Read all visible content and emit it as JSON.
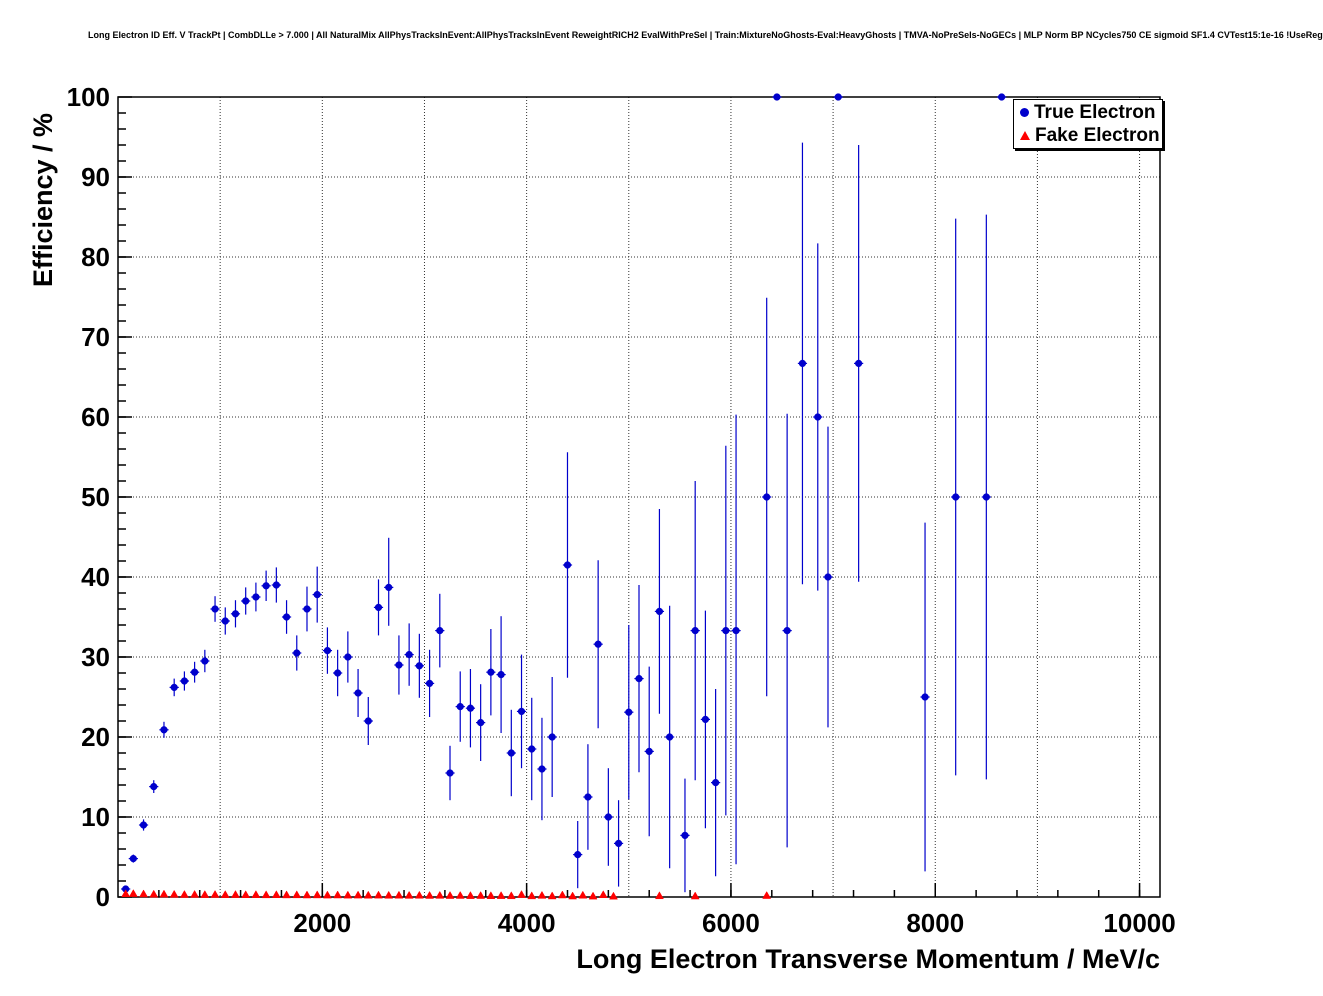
{
  "header": {
    "title": "Long Electron ID Eff. V TrackPt | CombDLLe > 7.000 | All NaturalMix AllPhysTracksInEvent:AllPhysTracksInEvent ReweightRICH2 EvalWithPreSel | Train:MixtureNoGhosts-Eval:HeavyGhosts | TMVA-NoPreSels-NoGECs | MLP Norm BP NCycles750 CE sigmoid SF1.4 CVTest15:1e-16 !UseReg"
  },
  "chart_data": {
    "type": "scatter",
    "title": "Long Electron ID Eff. V TrackPt | CombDLLe > 7.000",
    "xlabel": "Long Electron Transverse Momentum / MeV/c",
    "ylabel": "Efficiency / %",
    "xlim": [
      0,
      10200
    ],
    "ylim": [
      0,
      100
    ],
    "x_ticks": [
      2000,
      4000,
      6000,
      8000,
      10000
    ],
    "y_ticks": [
      0,
      10,
      20,
      30,
      40,
      50,
      60,
      70,
      80,
      90,
      100
    ],
    "grid": true,
    "grid_style": "dotted",
    "grid_color": "#000000",
    "frame_color": "#000000",
    "legend": {
      "position": "top-right",
      "entries": [
        {
          "label": "True Electron",
          "marker": "circle",
          "color": "#0000cc"
        },
        {
          "label": "Fake Electron",
          "marker": "triangle",
          "color": "#ff0000"
        }
      ]
    },
    "series": [
      {
        "name": "True Electron",
        "marker": "circle",
        "color": "#0000cc",
        "xerr": 45,
        "points": [
          [
            75,
            1.0,
            0.6,
            1.4
          ],
          [
            150,
            4.8,
            4.3,
            5.3
          ],
          [
            250,
            9.0,
            8.3,
            9.7
          ],
          [
            350,
            13.8,
            13.0,
            14.6
          ],
          [
            450,
            20.9,
            19.9,
            21.9
          ],
          [
            550,
            26.2,
            25.1,
            27.3
          ],
          [
            650,
            27.0,
            25.8,
            28.2
          ],
          [
            750,
            28.1,
            26.8,
            29.4
          ],
          [
            850,
            29.5,
            28.1,
            30.9
          ],
          [
            950,
            36.0,
            34.4,
            37.6
          ],
          [
            1050,
            34.5,
            32.8,
            36.2
          ],
          [
            1150,
            35.4,
            33.7,
            37.1
          ],
          [
            1250,
            37.0,
            35.3,
            38.7
          ],
          [
            1350,
            37.5,
            35.7,
            39.3
          ],
          [
            1450,
            38.9,
            37.0,
            40.8
          ],
          [
            1550,
            39.0,
            36.8,
            41.2
          ],
          [
            1650,
            35.0,
            32.9,
            37.1
          ],
          [
            1750,
            30.5,
            28.3,
            32.7
          ],
          [
            1850,
            36.0,
            33.2,
            38.8
          ],
          [
            1950,
            37.8,
            34.3,
            41.3
          ],
          [
            2050,
            30.8,
            27.9,
            33.7
          ],
          [
            2150,
            28.0,
            25.1,
            30.9
          ],
          [
            2250,
            30.0,
            26.8,
            33.2
          ],
          [
            2350,
            25.5,
            22.5,
            28.5
          ],
          [
            2450,
            22.0,
            19.0,
            25.0
          ],
          [
            2550,
            36.2,
            32.7,
            39.7
          ],
          [
            2650,
            38.7,
            33.9,
            44.9
          ],
          [
            2750,
            29.0,
            25.3,
            32.7
          ],
          [
            2850,
            30.3,
            26.4,
            34.2
          ],
          [
            2950,
            28.9,
            24.9,
            32.9
          ],
          [
            3050,
            26.7,
            22.5,
            30.9
          ],
          [
            3150,
            33.3,
            28.7,
            37.9
          ],
          [
            3250,
            15.5,
            12.1,
            18.9
          ],
          [
            3350,
            23.8,
            19.4,
            28.2
          ],
          [
            3450,
            23.6,
            18.7,
            28.5
          ],
          [
            3550,
            21.8,
            17.0,
            26.6
          ],
          [
            3650,
            28.1,
            22.7,
            33.5
          ],
          [
            3750,
            27.8,
            20.5,
            35.1
          ],
          [
            3850,
            18.0,
            12.6,
            23.4
          ],
          [
            3950,
            23.2,
            16.1,
            30.3
          ],
          [
            4050,
            18.5,
            12.1,
            24.9
          ],
          [
            4150,
            16.0,
            9.6,
            22.4
          ],
          [
            4250,
            20.0,
            12.5,
            27.5
          ],
          [
            4400,
            41.5,
            27.4,
            55.6
          ],
          [
            4500,
            5.3,
            1.1,
            9.5
          ],
          [
            4600,
            12.5,
            5.9,
            19.1
          ],
          [
            4700,
            31.6,
            21.1,
            42.1
          ],
          [
            4800,
            10.0,
            3.9,
            16.1
          ],
          [
            4900,
            6.7,
            1.3,
            12.1
          ],
          [
            5000,
            23.1,
            12.2,
            34.0
          ],
          [
            5100,
            27.3,
            15.6,
            39.0
          ],
          [
            5200,
            18.2,
            7.6,
            28.8
          ],
          [
            5300,
            35.7,
            22.9,
            48.5
          ],
          [
            5400,
            20.0,
            3.6,
            36.4
          ],
          [
            5550,
            7.7,
            0.6,
            14.8
          ],
          [
            5650,
            33.3,
            14.6,
            52.0
          ],
          [
            5750,
            22.2,
            8.6,
            35.8
          ],
          [
            5850,
            14.3,
            2.6,
            26.0
          ],
          [
            5950,
            33.3,
            10.2,
            56.4
          ],
          [
            6050,
            33.3,
            4.1,
            60.3
          ],
          [
            6350,
            50.0,
            25.1,
            74.9
          ],
          [
            6450,
            100.0,
            100.0,
            100.0
          ],
          [
            6550,
            33.3,
            6.2,
            60.4
          ],
          [
            6700,
            66.7,
            39.1,
            94.3
          ],
          [
            6850,
            60.0,
            38.3,
            81.7
          ],
          [
            6950,
            40.0,
            21.2,
            58.8
          ],
          [
            7050,
            100.0,
            100.0,
            100.0
          ],
          [
            7250,
            66.7,
            39.4,
            94.0
          ],
          [
            7900,
            25.0,
            3.2,
            46.8
          ],
          [
            8200,
            50.0,
            15.2,
            84.8
          ],
          [
            8500,
            50.0,
            14.7,
            85.3
          ],
          [
            8650,
            100.0,
            100.0,
            100.0
          ]
        ]
      },
      {
        "name": "Fake Electron",
        "marker": "triangle",
        "color": "#ff0000",
        "xerr": 0,
        "points": [
          [
            75,
            0.4
          ],
          [
            150,
            0.42
          ],
          [
            250,
            0.38
          ],
          [
            350,
            0.35
          ],
          [
            450,
            0.36
          ],
          [
            550,
            0.33
          ],
          [
            650,
            0.31
          ],
          [
            750,
            0.32
          ],
          [
            850,
            0.3
          ],
          [
            950,
            0.31
          ],
          [
            1050,
            0.29
          ],
          [
            1150,
            0.3
          ],
          [
            1250,
            0.28
          ],
          [
            1350,
            0.29
          ],
          [
            1450,
            0.27
          ],
          [
            1550,
            0.28
          ],
          [
            1650,
            0.26
          ],
          [
            1750,
            0.27
          ],
          [
            1850,
            0.25
          ],
          [
            1950,
            0.26
          ],
          [
            2050,
            0.24
          ],
          [
            2150,
            0.25
          ],
          [
            2250,
            0.23
          ],
          [
            2350,
            0.24
          ],
          [
            2450,
            0.22
          ],
          [
            2550,
            0.23
          ],
          [
            2650,
            0.21
          ],
          [
            2750,
            0.22
          ],
          [
            2850,
            0.2
          ],
          [
            2950,
            0.21
          ],
          [
            3050,
            0.19
          ],
          [
            3150,
            0.2
          ],
          [
            3250,
            0.18
          ],
          [
            3350,
            0.19
          ],
          [
            3450,
            0.17
          ],
          [
            3550,
            0.18
          ],
          [
            3650,
            0.16
          ],
          [
            3750,
            0.17
          ],
          [
            3850,
            0.15
          ],
          [
            3950,
            0.3
          ],
          [
            4050,
            0.14
          ],
          [
            4150,
            0.2
          ],
          [
            4250,
            0.13
          ],
          [
            4350,
            0.25
          ],
          [
            4450,
            0.12
          ],
          [
            4550,
            0.22
          ],
          [
            4650,
            0.11
          ],
          [
            4750,
            0.28
          ],
          [
            4850,
            0.1
          ],
          [
            5300,
            0.15
          ],
          [
            5650,
            0.12
          ],
          [
            6350,
            0.18
          ]
        ]
      }
    ]
  }
}
